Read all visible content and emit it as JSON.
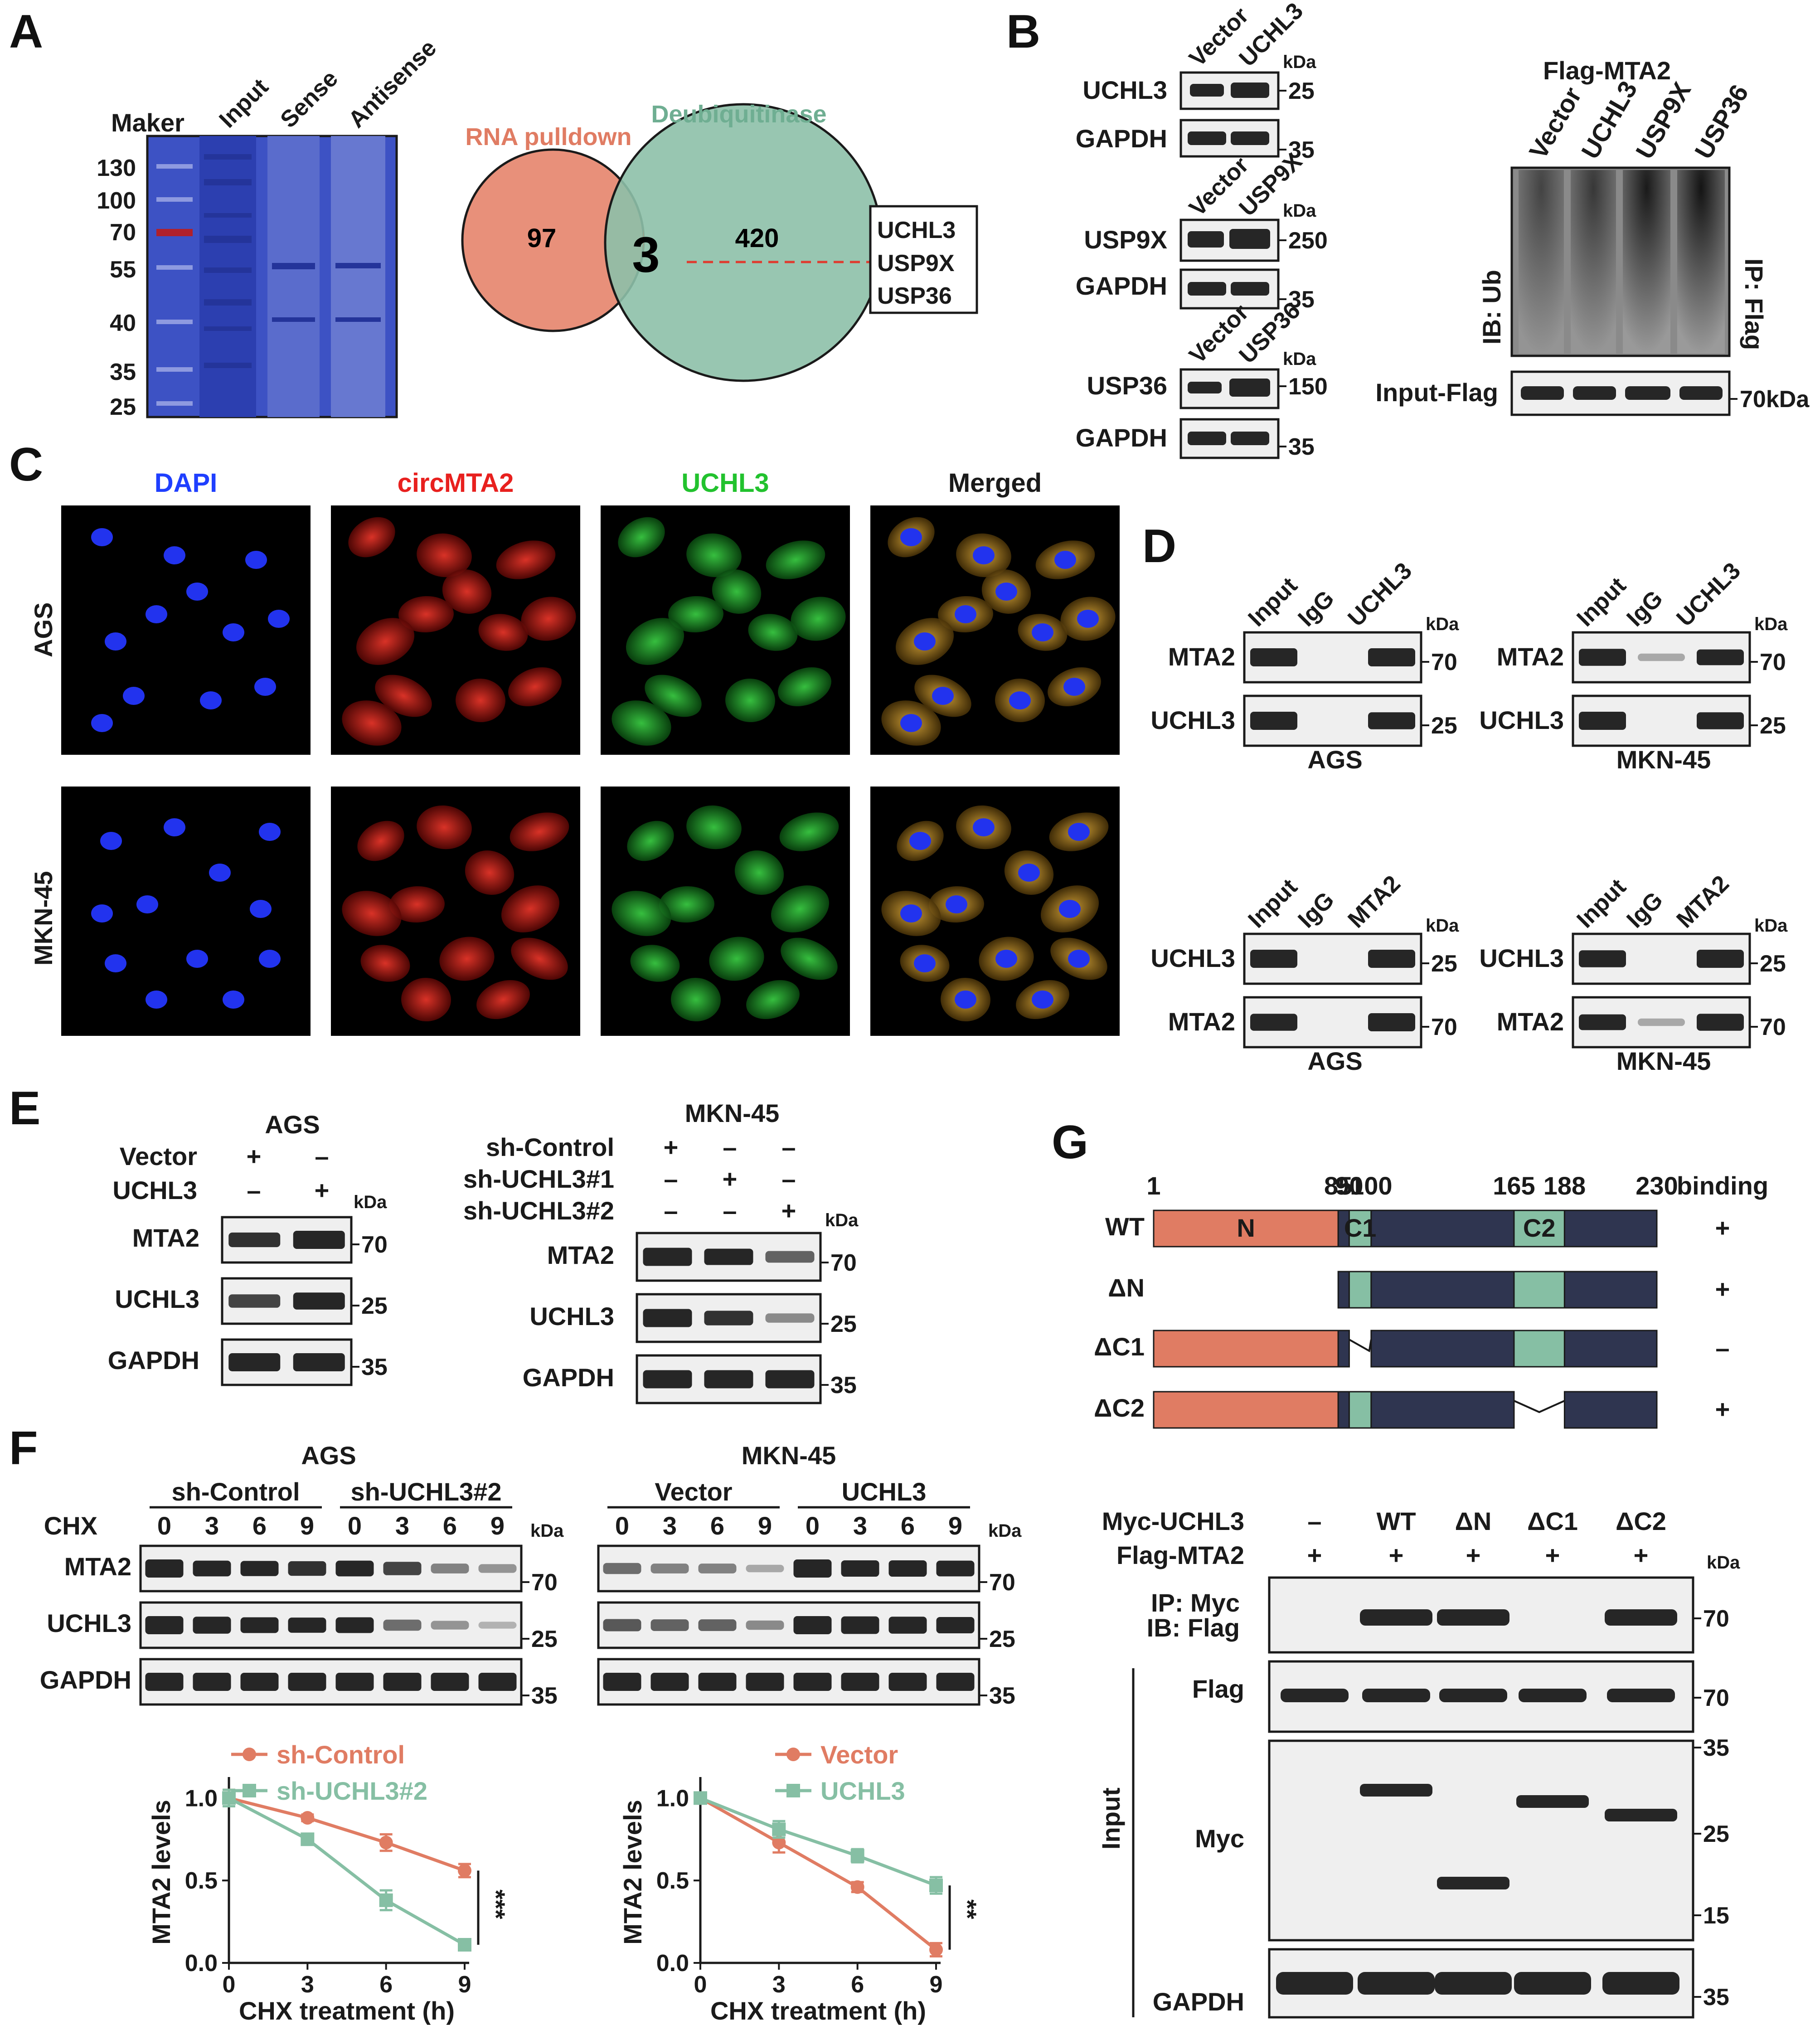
{
  "panels": [
    "A",
    "B",
    "C",
    "D",
    "E",
    "F",
    "G"
  ],
  "panelA": {
    "gel_header": "Maker",
    "lane_labels": [
      "Input",
      "Sense",
      "Antisense"
    ],
    "markers": [
      "130",
      "100",
      "70",
      "55",
      "40",
      "35",
      "25"
    ],
    "venn": {
      "left_label": "RNA pulldown",
      "right_label": "Deubiquitinase",
      "left_only": "97",
      "overlap": "3",
      "right_only": "420",
      "left_color": "#e8907a",
      "right_color": "#8dc0a8",
      "genes": [
        "UCHL3",
        "USP9X",
        "USP36"
      ]
    }
  },
  "panelB": {
    "kda": "kDa",
    "left_blots": [
      {
        "lanes": [
          "Vector",
          "UCHL3"
        ],
        "rows": [
          {
            "label": "UCHL3",
            "mw": "25"
          },
          {
            "label": "GAPDH",
            "mw": "35"
          }
        ]
      },
      {
        "lanes": [
          "Vector",
          "USP9X"
        ],
        "rows": [
          {
            "label": "USP9X",
            "mw": "250"
          },
          {
            "label": "GAPDH",
            "mw": "35"
          }
        ]
      },
      {
        "lanes": [
          "Vector",
          "USP36"
        ],
        "rows": [
          {
            "label": "USP36",
            "mw": "150"
          },
          {
            "label": "GAPDH",
            "mw": "35"
          }
        ]
      }
    ],
    "right": {
      "title": "Flag-MTA2",
      "lanes": [
        "Vector",
        "UCHL3",
        "USP9X",
        "USP36"
      ],
      "ib": "IB: Ub",
      "ip": "IP: Flag",
      "input_label": "Input-Flag",
      "input_mw": "70kDa"
    }
  },
  "panelC": {
    "columns": [
      "DAPI",
      "circMTA2",
      "UCHL3",
      "Merged"
    ],
    "column_colors": [
      "#1f3fff",
      "#e8201e",
      "#22c22e",
      "#1a1a1a"
    ],
    "rows": [
      "AGS",
      "MKN-45"
    ]
  },
  "panelD": {
    "kda": "kDa",
    "blots": [
      {
        "lanes": [
          "Input",
          "IgG",
          "UCHL3"
        ],
        "rows": [
          {
            "label": "MTA2",
            "mw": "70"
          },
          {
            "label": "UCHL3",
            "mw": "25"
          }
        ],
        "cell": "AGS"
      },
      {
        "lanes": [
          "Input",
          "IgG",
          "UCHL3"
        ],
        "rows": [
          {
            "label": "MTA2",
            "mw": "70"
          },
          {
            "label": "UCHL3",
            "mw": "25"
          }
        ],
        "cell": "MKN-45"
      },
      {
        "lanes": [
          "Input",
          "IgG",
          "MTA2"
        ],
        "rows": [
          {
            "label": "UCHL3",
            "mw": "25"
          },
          {
            "label": "MTA2",
            "mw": "70"
          }
        ],
        "cell": "AGS"
      },
      {
        "lanes": [
          "Input",
          "IgG",
          "MTA2"
        ],
        "rows": [
          {
            "label": "UCHL3",
            "mw": "25"
          },
          {
            "label": "MTA2",
            "mw": "70"
          }
        ],
        "cell": "MKN-45"
      }
    ]
  },
  "panelE": {
    "kda": "kDa",
    "left": {
      "cell": "AGS",
      "conditions": [
        {
          "label": "Vector",
          "signs": [
            "+",
            "–"
          ]
        },
        {
          "label": "UCHL3",
          "signs": [
            "–",
            "+"
          ]
        }
      ],
      "rows": [
        {
          "label": "MTA2",
          "mw": "70"
        },
        {
          "label": "UCHL3",
          "mw": "25"
        },
        {
          "label": "GAPDH",
          "mw": "35"
        }
      ]
    },
    "right": {
      "cell": "MKN-45",
      "conditions": [
        {
          "label": "sh-Control",
          "signs": [
            "+",
            "–",
            "–"
          ]
        },
        {
          "label": "sh-UCHL3#1",
          "signs": [
            "–",
            "+",
            "–"
          ]
        },
        {
          "label": "sh-UCHL3#2",
          "signs": [
            "–",
            "–",
            "+"
          ]
        }
      ],
      "rows": [
        {
          "label": "MTA2",
          "mw": "70"
        },
        {
          "label": "UCHL3",
          "mw": "25"
        },
        {
          "label": "GAPDH",
          "mw": "35"
        }
      ]
    }
  },
  "panelF": {
    "kda": "kDa",
    "chx_label": "CHX",
    "timepoints": [
      "0",
      "3",
      "6",
      "9"
    ],
    "left": {
      "cell": "AGS",
      "groups": [
        "sh-Control",
        "sh-UCHL3#2"
      ]
    },
    "right": {
      "cell": "MKN-45",
      "groups": [
        "Vector",
        "UCHL3"
      ]
    },
    "rows": [
      {
        "label": "MTA2",
        "mw": "70"
      },
      {
        "label": "UCHL3",
        "mw": "25"
      },
      {
        "label": "GAPDH",
        "mw": "35"
      }
    ]
  },
  "panelG": {
    "positions": [
      "1",
      "85",
      "90",
      "100",
      "165",
      "188",
      "230"
    ],
    "binding_header": "binding",
    "domain_labels": [
      "N",
      "C1",
      "C2"
    ],
    "constructs": [
      {
        "label": "WT",
        "binding": "+"
      },
      {
        "label": "ΔN",
        "binding": "+"
      },
      {
        "label": "ΔC1",
        "binding": "–"
      },
      {
        "label": "ΔC2",
        "binding": "+"
      }
    ],
    "colors": {
      "N": "#e07c63",
      "C": "#86bfa4",
      "body": "#2f3550"
    },
    "coip": {
      "myc_label": "Myc-UCHL3",
      "myc_values": [
        "–",
        "WT",
        "ΔN",
        "ΔC1",
        "ΔC2"
      ],
      "flag_label": "Flag-MTA2",
      "flag_values": [
        "+",
        "+",
        "+",
        "+",
        "+"
      ],
      "kda": "kDa",
      "ip_line1": "IP: Myc",
      "ip_line2": "IB: Flag",
      "ip_mw": "70",
      "input_label": "Input",
      "flag_row": "Flag",
      "flag_mw": "70",
      "myc_row": "Myc",
      "myc_markers": [
        "35",
        "25",
        "15"
      ],
      "gapdh_row": "GAPDH",
      "gapdh_mw": "35"
    }
  },
  "chart_data": [
    {
      "type": "line",
      "x": [
        0,
        3,
        6,
        9
      ],
      "xlabel": "CHX treatment (h)",
      "ylabel": "MTA2 levels",
      "xticks": [
        "0",
        "3",
        "6",
        "9"
      ],
      "yticks": [
        "0.0",
        "0.5",
        "1.0"
      ],
      "ylim": [
        0,
        1.1
      ],
      "significance": "***",
      "legend_position": "top-right",
      "series": [
        {
          "name": "sh-Control",
          "values": [
            1.0,
            0.88,
            0.73,
            0.56
          ],
          "errors": [
            0.05,
            0.02,
            0.05,
            0.04
          ],
          "color": "#e07c63"
        },
        {
          "name": "sh-UCHL3#2",
          "values": [
            1.0,
            0.75,
            0.38,
            0.11
          ],
          "errors": [
            0.05,
            0.02,
            0.06,
            0.02
          ],
          "color": "#86bfa4"
        }
      ]
    },
    {
      "type": "line",
      "x": [
        0,
        3,
        6,
        9
      ],
      "xlabel": "CHX treatment (h)",
      "ylabel": "MTA2 levels",
      "xticks": [
        "0",
        "3",
        "6",
        "9"
      ],
      "yticks": [
        "0.0",
        "0.5",
        "1.0"
      ],
      "ylim": [
        0,
        1.1
      ],
      "significance": "**",
      "legend_position": "top-right",
      "series": [
        {
          "name": "Vector",
          "values": [
            1.0,
            0.73,
            0.46,
            0.08
          ],
          "errors": [
            0.03,
            0.06,
            0.03,
            0.04
          ],
          "color": "#e07c63"
        },
        {
          "name": "UCHL3",
          "values": [
            1.0,
            0.81,
            0.65,
            0.47
          ],
          "errors": [
            0.03,
            0.05,
            0.04,
            0.05
          ],
          "color": "#86bfa4"
        }
      ]
    }
  ]
}
